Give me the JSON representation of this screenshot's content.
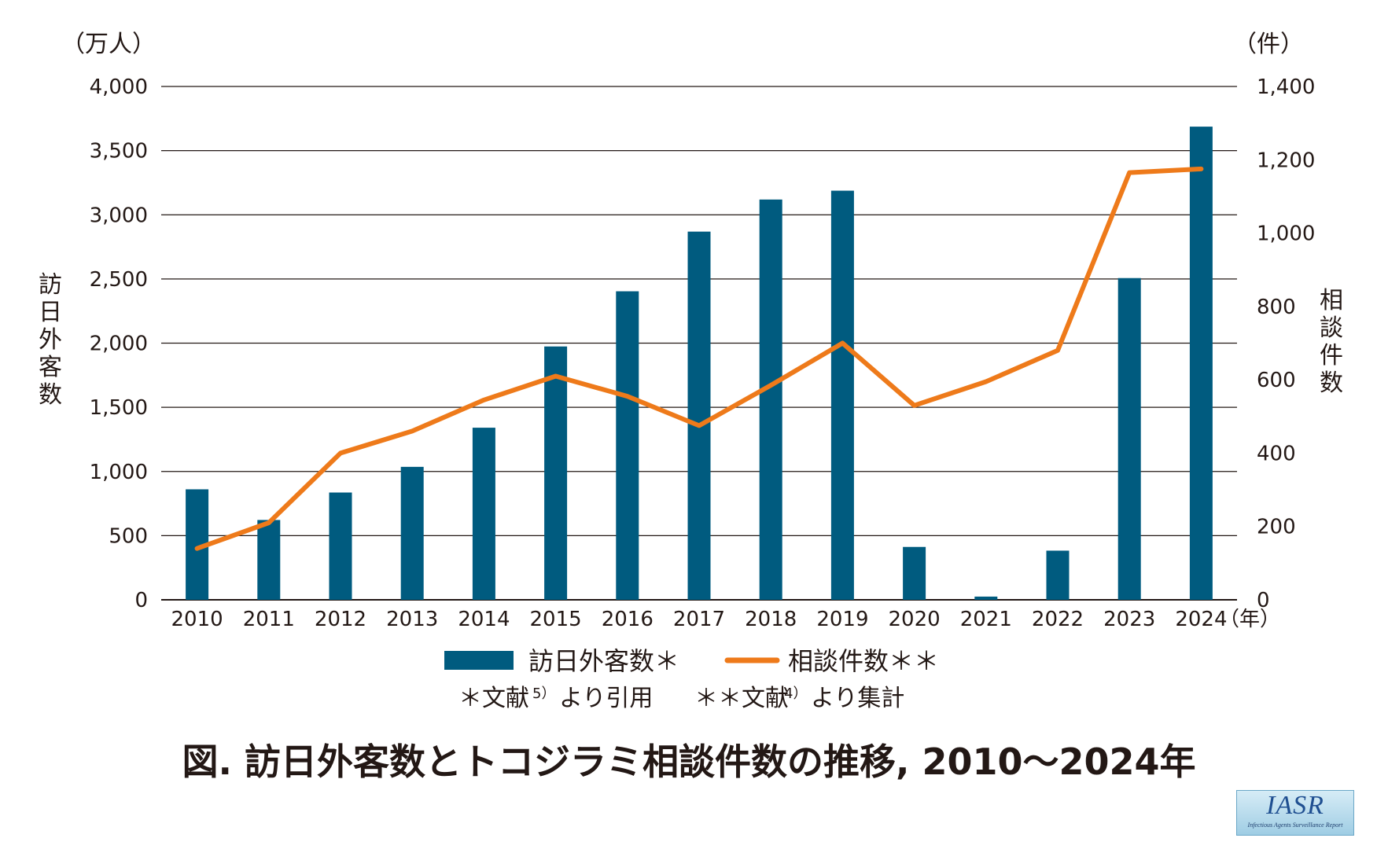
{
  "chart_data": {
    "type": "bar",
    "title": "図. 訪日外客数とトコジラミ相談件数の推移, 2010～2024年",
    "categories": [
      "2010",
      "2011",
      "2012",
      "2013",
      "2014",
      "2015",
      "2016",
      "2017",
      "2018",
      "2019",
      "2020",
      "2021",
      "2022",
      "2023",
      "2024"
    ],
    "x_unit": "（年）",
    "series": [
      {
        "name": "訪日外客数",
        "legend": "訪日外客数＊",
        "type": "bar",
        "axis": "left",
        "color": "#005b7f",
        "values": [
          861,
          622,
          836,
          1036,
          1341,
          1974,
          2404,
          2869,
          3119,
          3188,
          412,
          25,
          383,
          2507,
          3687
        ]
      },
      {
        "name": "相談件数",
        "legend": "相談件数＊＊",
        "type": "line",
        "axis": "right",
        "color": "#ee7a1a",
        "values": [
          140,
          210,
          400,
          460,
          545,
          610,
          555,
          475,
          585,
          700,
          530,
          595,
          680,
          1165,
          1175
        ]
      }
    ],
    "y_left": {
      "label": "訪日外客数",
      "unit": "（万人）",
      "ylim": [
        0,
        4000
      ],
      "ticks": [
        "0",
        "500",
        "1,000",
        "1,500",
        "2,000",
        "2,500",
        "3,000",
        "3,500",
        "4,000"
      ]
    },
    "y_right": {
      "label": "相談件数",
      "unit": "（件）",
      "ylim": [
        0,
        1400
      ],
      "ticks": [
        "0",
        "200",
        "400",
        "600",
        "800",
        "1,000",
        "1,200",
        "1,400"
      ]
    },
    "grid": true,
    "legend_position": "bottom-center",
    "notes": {
      "note1_text": "＊文献",
      "note1_sup": "5）",
      "note1_tail": "より引用",
      "note2_text": "＊＊文献",
      "note2_sup": "4）",
      "note2_tail": "より集計"
    }
  },
  "logo": {
    "main": "IASR",
    "sub": "Infectious Agents Surveillance Report"
  }
}
